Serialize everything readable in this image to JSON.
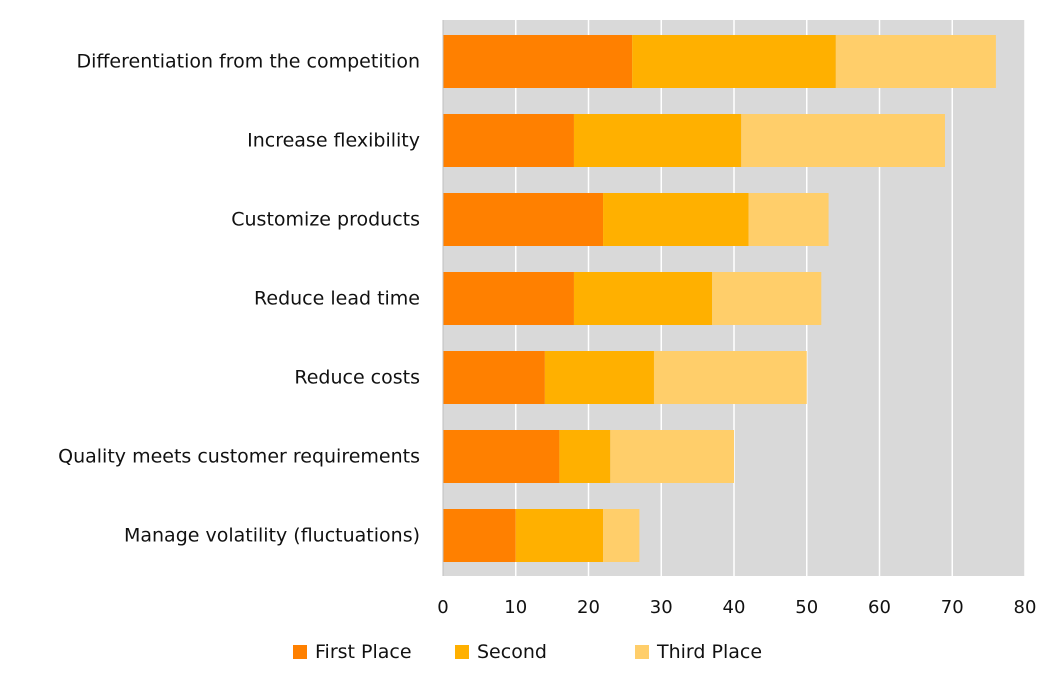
{
  "chart_data": {
    "type": "bar",
    "orientation": "horizontal",
    "stacked": true,
    "categories": [
      "Differentiation from the competition",
      "Increase flexibility",
      "Customize products",
      "Reduce lead time",
      "Reduce costs",
      "Quality meets customer requirements",
      "Manage volatility (fluctuations)"
    ],
    "series": [
      {
        "name": "First Place",
        "color": "#FF8000",
        "values": [
          26,
          18,
          22,
          18,
          14,
          16,
          10
        ]
      },
      {
        "name": "Second",
        "color": "#FFB000",
        "values": [
          28,
          23,
          20,
          19,
          15,
          7,
          12
        ]
      },
      {
        "name": "Third Place",
        "color": "#FFCE6A",
        "values": [
          22,
          28,
          11,
          15,
          21,
          17,
          5
        ]
      }
    ],
    "xlim": [
      0,
      80
    ],
    "xticks": [
      0,
      10,
      20,
      30,
      40,
      50,
      60,
      70,
      80
    ],
    "grid": true,
    "plot_background": "#D9D9D9",
    "gridline_color": "#FFFFFF",
    "legend_position": "bottom"
  }
}
